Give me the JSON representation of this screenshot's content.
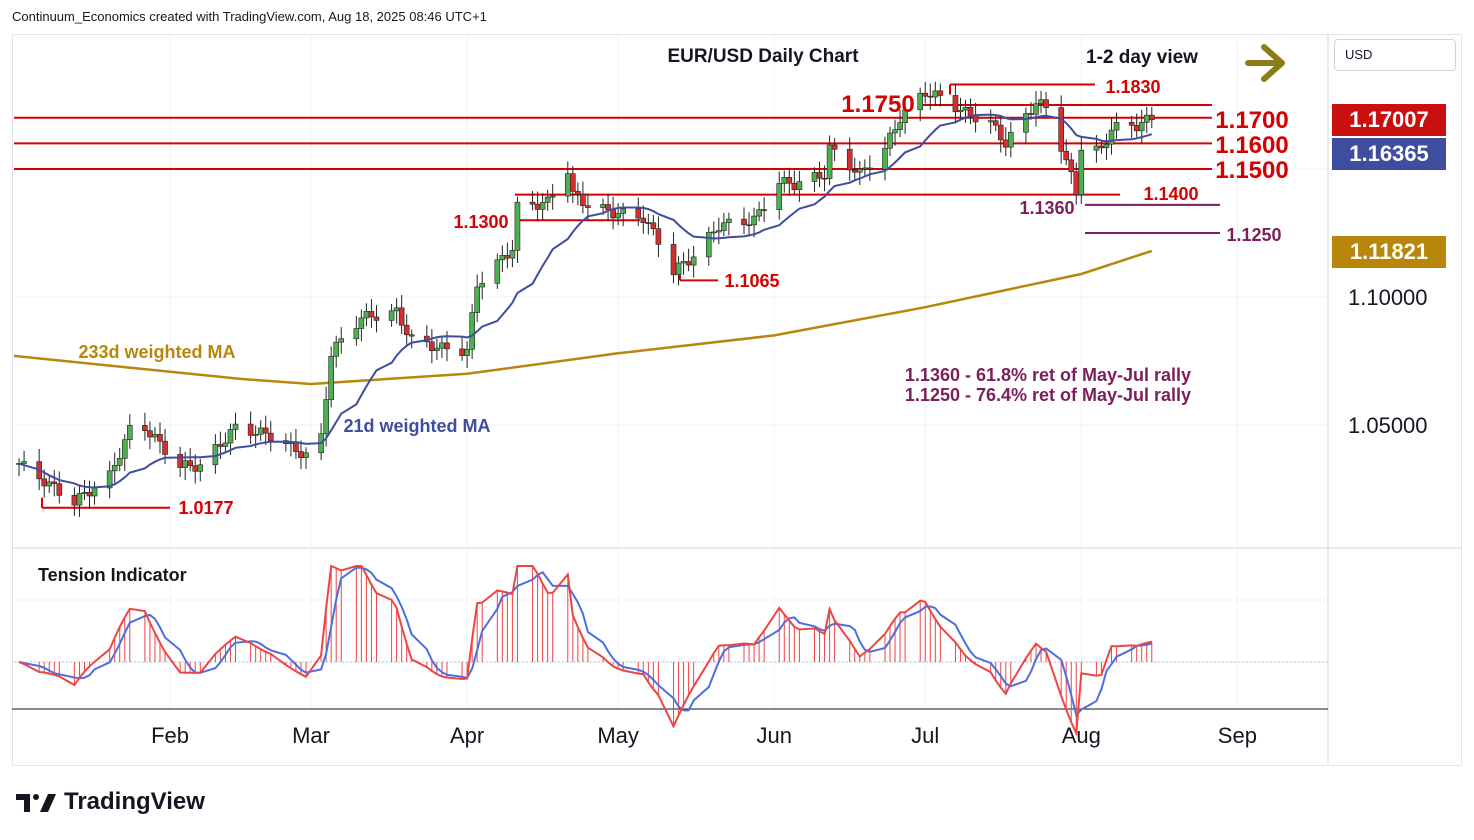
{
  "header": {
    "text": "Continuum_Economics created with TradingView.com, Aug 18, 2025 08:46 UTC+1"
  },
  "footer": {
    "brand": "TradingView",
    "logo_icon": "tradingview-logo-icon"
  },
  "currency_button": "USD",
  "colors": {
    "up": "#4caf50",
    "down": "#d32f2f",
    "level": "#d50000",
    "fib": "#7b1f5c",
    "ma21": "#3f4d9f",
    "ma233": "#b8860b",
    "arrow": "#8b7d15",
    "tension_fill": "#ef4444",
    "tension_fast": "#ef4444",
    "tension_slow": "#4c6ee0"
  },
  "axis": {
    "price_labels": [
      "1.10000",
      "1.05000"
    ],
    "month_labels": [
      "Feb",
      "Mar",
      "Apr",
      "May",
      "Jun",
      "Jul",
      "Aug",
      "Sep"
    ]
  },
  "price_tags": [
    {
      "value": "1.17007",
      "color": "#c91010"
    },
    {
      "value": "1.16365",
      "color": "#3f4d9f"
    },
    {
      "value": "1.11821",
      "color": "#b8860b"
    }
  ],
  "chart_data": {
    "type": "candlestick",
    "title": "EUR/USD Daily Chart",
    "view": "1-2 day view",
    "view_icon": "arrow-right-icon",
    "price_range": [
      1.005,
      1.2
    ],
    "levels": [
      {
        "label": "1.1830",
        "value": 1.183,
        "kind": "resistance"
      },
      {
        "label": "1.1750",
        "value": 1.175,
        "kind": "resistance"
      },
      {
        "label": "1.1700",
        "value": 1.17,
        "kind": "resistance"
      },
      {
        "label": "1.1600",
        "value": 1.16,
        "kind": "support"
      },
      {
        "label": "1.1500",
        "value": 1.15,
        "kind": "support"
      },
      {
        "label": "1.1400",
        "value": 1.14,
        "kind": "support"
      },
      {
        "label": "1.1300",
        "value": 1.13,
        "kind": "support"
      },
      {
        "label": "1.1065",
        "value": 1.1065,
        "kind": "low"
      },
      {
        "label": "1.0177",
        "value": 1.0177,
        "kind": "low"
      }
    ],
    "fib_levels": [
      {
        "label": "1.1360",
        "value": 1.136
      },
      {
        "label": "1.1250",
        "value": 1.125
      }
    ],
    "annotations": [
      "1.1360 - 61.8% ret of May-Jul rally",
      "1.1250 - 76.4% ret of May-Jul rally"
    ],
    "ma_labels": {
      "ma233": "233d weighted MA",
      "ma21": "21d weighted MA"
    },
    "tension_label": "Tension Indicator",
    "close_points": [
      [
        "2025-01-02",
        1.035
      ],
      [
        "2025-01-10",
        1.024
      ],
      [
        "2025-01-13",
        1.02
      ],
      [
        "2025-01-20",
        1.03
      ],
      [
        "2025-01-24",
        1.048
      ],
      [
        "2025-01-27",
        1.049
      ],
      [
        "2025-02-03",
        1.034
      ],
      [
        "2025-02-07",
        1.034
      ],
      [
        "2025-02-14",
        1.049
      ],
      [
        "2025-02-21",
        1.046
      ],
      [
        "2025-02-28",
        1.038
      ],
      [
        "2025-03-03",
        1.045
      ],
      [
        "2025-03-05",
        1.078
      ],
      [
        "2025-03-07",
        1.083
      ],
      [
        "2025-03-11",
        1.092
      ],
      [
        "2025-03-18",
        1.094
      ],
      [
        "2025-03-21",
        1.083
      ],
      [
        "2025-03-27",
        1.08
      ],
      [
        "2025-04-01",
        1.079
      ],
      [
        "2025-04-03",
        1.105
      ],
      [
        "2025-04-10",
        1.119
      ],
      [
        "2025-04-11",
        1.135
      ],
      [
        "2025-04-17",
        1.137
      ],
      [
        "2025-04-21",
        1.15
      ],
      [
        "2025-04-22",
        1.14
      ],
      [
        "2025-04-25",
        1.136
      ],
      [
        "2025-04-30",
        1.133
      ],
      [
        "2025-05-06",
        1.131
      ],
      [
        "2025-05-09",
        1.122
      ],
      [
        "2025-05-12",
        1.11
      ],
      [
        "2025-05-16",
        1.116
      ],
      [
        "2025-05-21",
        1.128
      ],
      [
        "2025-05-28",
        1.13
      ],
      [
        "2025-06-02",
        1.145
      ],
      [
        "2025-06-05",
        1.144
      ],
      [
        "2025-06-11",
        1.148
      ],
      [
        "2025-06-12",
        1.158
      ],
      [
        "2025-06-18",
        1.148
      ],
      [
        "2025-06-23",
        1.158
      ],
      [
        "2025-06-26",
        1.17
      ],
      [
        "2025-07-01",
        1.18
      ],
      [
        "2025-07-04",
        1.178
      ],
      [
        "2025-07-09",
        1.172
      ],
      [
        "2025-07-14",
        1.168
      ],
      [
        "2025-07-17",
        1.16
      ],
      [
        "2025-07-23",
        1.176
      ],
      [
        "2025-07-25",
        1.174
      ],
      [
        "2025-07-28",
        1.159
      ],
      [
        "2025-07-31",
        1.141
      ],
      [
        "2025-08-01",
        1.159
      ],
      [
        "2025-08-05",
        1.157
      ],
      [
        "2025-08-07",
        1.166
      ],
      [
        "2025-08-12",
        1.167
      ],
      [
        "2025-08-15",
        1.17
      ]
    ]
  }
}
